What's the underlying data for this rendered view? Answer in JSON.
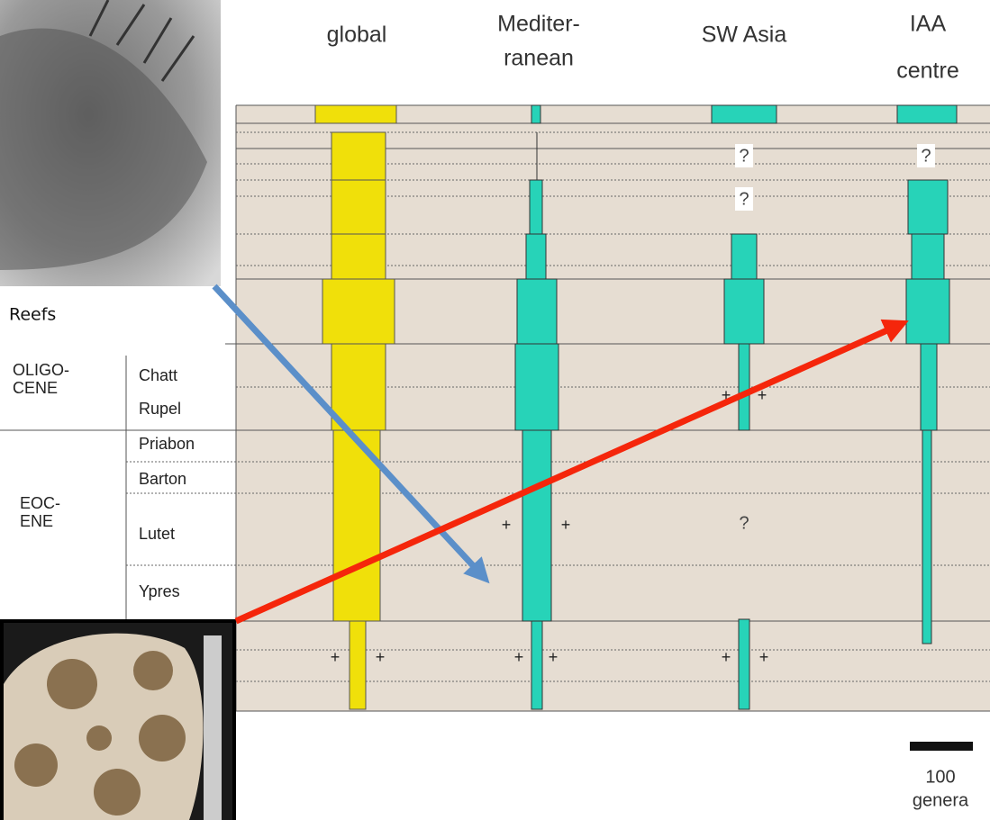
{
  "header": {
    "columns": [
      {
        "lines": [
          "global"
        ]
      },
      {
        "lines": [
          "Mediter-",
          "ranean"
        ]
      },
      {
        "lines": [
          "SW Asia"
        ]
      },
      {
        "lines": [
          "IAA",
          "centre"
        ]
      }
    ]
  },
  "caption": "Reefs",
  "strat": {
    "epochs": [
      {
        "lines": [
          "OLIGO-",
          "CENE"
        ]
      },
      {
        "lines": [
          "EOC-",
          "ENE"
        ]
      }
    ],
    "stages": [
      "Chatt",
      "Rupel",
      "Priabon",
      "Barton",
      "Lutet",
      "Ypres"
    ]
  },
  "marks": {
    "question": "?",
    "plus": "+"
  },
  "scale": {
    "value": "100",
    "unit": "genera"
  }
}
